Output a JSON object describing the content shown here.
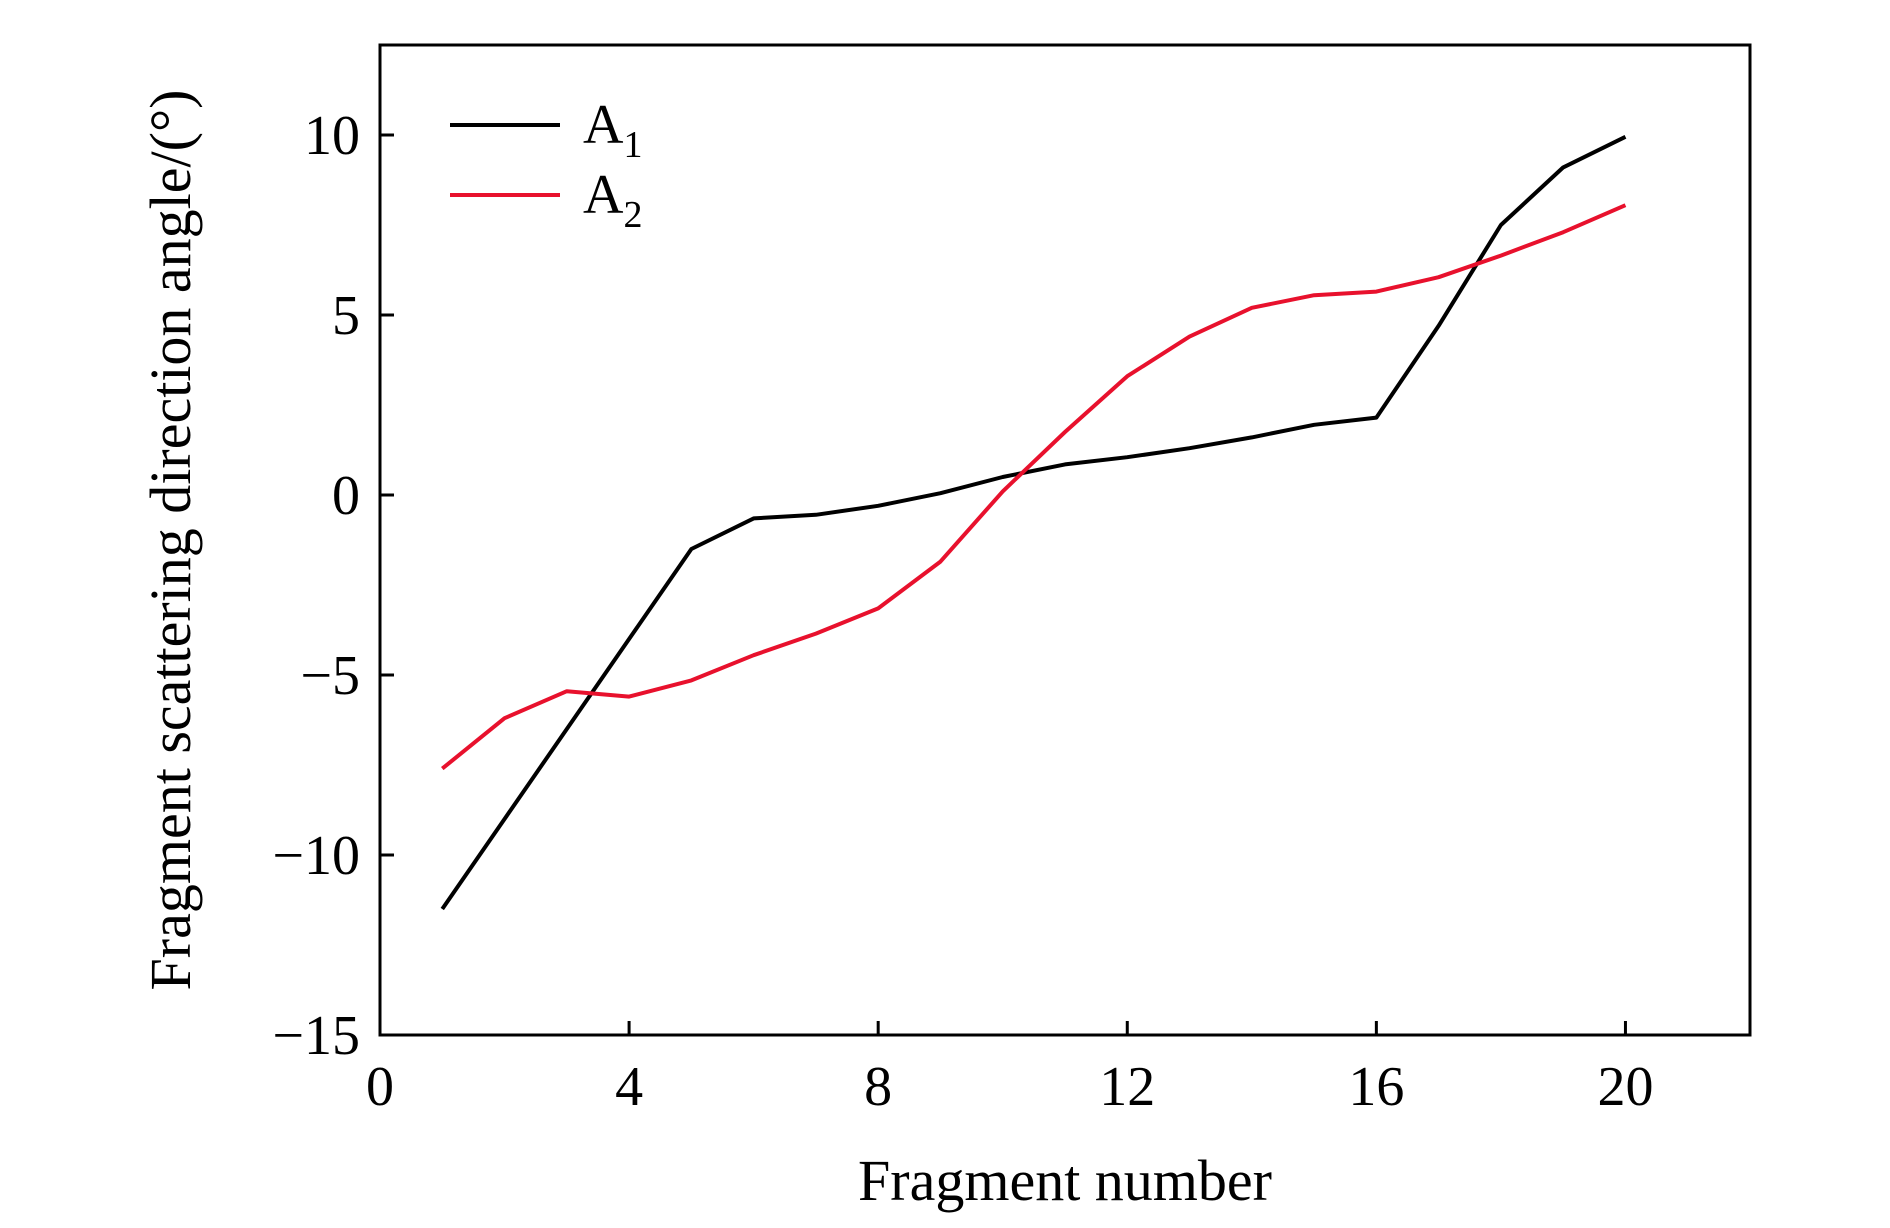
{
  "chart_data": {
    "type": "line",
    "title": "",
    "xlabel": "Fragment number",
    "ylabel": "Fragment scattering direction angle/(°)",
    "xlim": [
      0,
      22
    ],
    "ylim": [
      -15,
      12.5
    ],
    "xticks": [
      0,
      4,
      8,
      12,
      16,
      20
    ],
    "yticks": [
      -15,
      -10,
      -5,
      0,
      5,
      10
    ],
    "xtick_labels": [
      "0",
      "4",
      "8",
      "12",
      "16",
      "20"
    ],
    "ytick_labels": [
      "−15",
      "−10",
      "−5",
      "0",
      "5",
      "10"
    ],
    "grid": false,
    "legend_position": "top-left",
    "x": [
      1,
      2,
      3,
      4,
      5,
      6,
      7,
      8,
      9,
      10,
      11,
      12,
      13,
      14,
      15,
      16,
      17,
      18,
      19,
      20
    ],
    "series": [
      {
        "name": "A1",
        "label_main": "A",
        "label_sub": "1",
        "color": "#000000",
        "values": [
          -11.5,
          -9.0,
          -6.5,
          -4.0,
          -1.5,
          -0.65,
          -0.55,
          -0.3,
          0.05,
          0.5,
          0.85,
          1.05,
          1.3,
          1.6,
          1.95,
          2.15,
          4.7,
          7.5,
          9.1,
          9.95
        ]
      },
      {
        "name": "A2",
        "label_main": "A",
        "label_sub": "2",
        "color": "#e8112d",
        "values": [
          -7.6,
          -6.2,
          -5.45,
          -5.6,
          -5.15,
          -4.45,
          -3.85,
          -3.15,
          -1.85,
          0.1,
          1.75,
          3.3,
          4.4,
          5.2,
          5.55,
          5.65,
          6.05,
          6.65,
          7.3,
          8.05
        ]
      }
    ]
  }
}
